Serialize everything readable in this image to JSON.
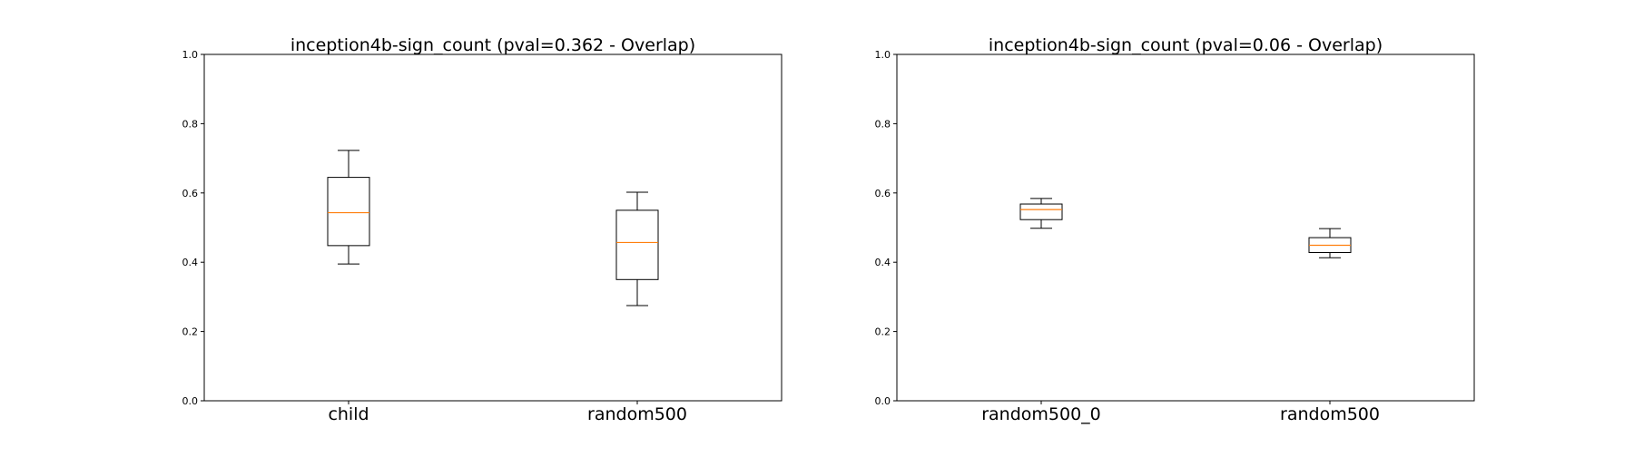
{
  "chart_data": [
    {
      "type": "box",
      "title": "inception4b-sign_count (pval=0.362 - Overlap)",
      "xlabel": "",
      "ylabel": "",
      "ylim": [
        0.0,
        1.0
      ],
      "yticks": [
        "0.0",
        "0.2",
        "0.4",
        "0.6",
        "0.8",
        "1.0"
      ],
      "grid": false,
      "categories": [
        "child",
        "random500"
      ],
      "boxes": [
        {
          "label": "child",
          "whisker_low": 0.395,
          "q1": 0.448,
          "median": 0.543,
          "q3": 0.645,
          "whisker_high": 0.723
        },
        {
          "label": "random500",
          "whisker_low": 0.275,
          "q1": 0.35,
          "median": 0.457,
          "q3": 0.55,
          "whisker_high": 0.602
        }
      ],
      "colors": {
        "box": "#000000",
        "median": "#ff7f0e"
      }
    },
    {
      "type": "box",
      "title": "inception4b-sign_count (pval=0.06 - Overlap)",
      "xlabel": "",
      "ylabel": "",
      "ylim": [
        0.0,
        1.0
      ],
      "yticks": [
        "0.0",
        "0.2",
        "0.4",
        "0.6",
        "0.8",
        "1.0"
      ],
      "grid": false,
      "categories": [
        "random500_0",
        "random500"
      ],
      "boxes": [
        {
          "label": "random500_0",
          "whisker_low": 0.498,
          "q1": 0.523,
          "median": 0.552,
          "q3": 0.568,
          "whisker_high": 0.584
        },
        {
          "label": "random500",
          "whisker_low": 0.413,
          "q1": 0.428,
          "median": 0.449,
          "q3": 0.471,
          "whisker_high": 0.497
        }
      ],
      "colors": {
        "box": "#000000",
        "median": "#ff7f0e"
      }
    }
  ]
}
